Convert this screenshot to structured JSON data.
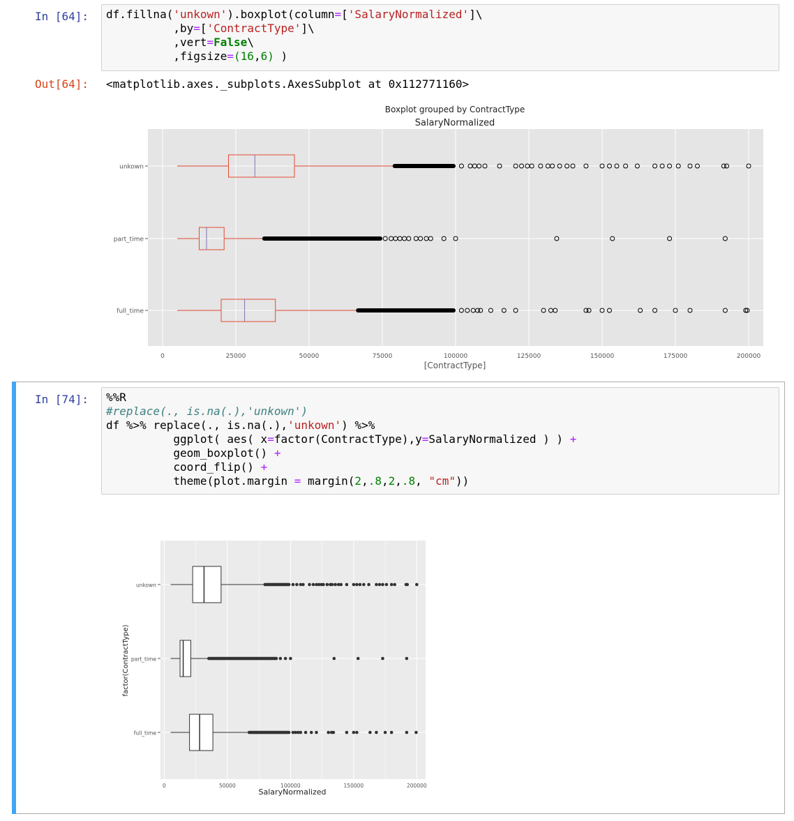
{
  "cell64": {
    "in_prompt": "In [64]:",
    "code_lines": [
      [
        [
          "df.fillna(",
          ""
        ],
        [
          "'unkown'",
          "s"
        ],
        [
          ").boxplot(column",
          ""
        ],
        [
          "=",
          "op"
        ],
        [
          "[",
          ""
        ],
        [
          "'SalaryNormalized'",
          "s"
        ],
        [
          "]\\",
          ""
        ]
      ],
      [
        [
          "          ,by",
          ""
        ],
        [
          "=",
          "op"
        ],
        [
          "[",
          ""
        ],
        [
          "'ContractType'",
          "s"
        ],
        [
          "]\\",
          ""
        ]
      ],
      [
        [
          "          ,vert",
          ""
        ],
        [
          "=",
          "op"
        ],
        [
          "False",
          "kw"
        ],
        [
          "\\",
          ""
        ]
      ],
      [
        [
          "          ,figsize",
          ""
        ],
        [
          "=",
          "op"
        ],
        [
          "(",
          "num"
        ],
        [
          "16",
          "num"
        ],
        [
          ",",
          ""
        ],
        [
          "6",
          "num"
        ],
        [
          ")",
          "num"
        ],
        [
          " )",
          ""
        ]
      ]
    ],
    "out_prompt": "Out[64]:",
    "out_text": "<matplotlib.axes._subplots.AxesSubplot at 0x112771160>"
  },
  "cell74": {
    "in_prompt": "In [74]:",
    "code_lines": [
      [
        [
          "%%R",
          ""
        ]
      ],
      [
        [
          "#replace(., is.na(.),'unkown')",
          "com"
        ]
      ],
      [
        [
          "df ",
          ""
        ],
        [
          "%>%",
          ""
        ],
        [
          " replace(., is.na(.),",
          ""
        ],
        [
          "'unkown'",
          "s"
        ],
        [
          ") ",
          ""
        ],
        [
          "%>%",
          ""
        ]
      ],
      [
        [
          "          ggplot( aes( x",
          ""
        ],
        [
          "=",
          "op"
        ],
        [
          "factor(ContractType),y",
          ""
        ],
        [
          "=",
          "op"
        ],
        [
          "SalaryNormalized ) ) ",
          ""
        ],
        [
          "+",
          "op"
        ]
      ],
      [
        [
          "          geom_boxplot() ",
          ""
        ],
        [
          "+",
          "op"
        ]
      ],
      [
        [
          "          coord_flip() ",
          ""
        ],
        [
          "+",
          "op"
        ]
      ],
      [
        [
          "          theme(plot.margin ",
          ""
        ],
        [
          "=",
          "op"
        ],
        [
          " margin(",
          ""
        ],
        [
          "2",
          "num"
        ],
        [
          ",",
          ""
        ],
        [
          ".8",
          "num"
        ],
        [
          ",",
          ""
        ],
        [
          "2",
          "num"
        ],
        [
          ",",
          ""
        ],
        [
          ".8",
          "num"
        ],
        [
          ", ",
          ""
        ],
        [
          "\"cm\"",
          "s"
        ],
        [
          "))",
          ""
        ]
      ]
    ]
  },
  "chart_data": [
    {
      "type": "box",
      "suptitle": "Boxplot grouped by ContractType",
      "title": "SalaryNormalized",
      "xlabel": "[ContractType]",
      "orientation": "horizontal",
      "xlim": [
        -5000,
        205000
      ],
      "xticks": [
        0,
        25000,
        50000,
        75000,
        100000,
        125000,
        150000,
        175000,
        200000
      ],
      "categories": [
        "full_time",
        "part_time",
        "unkown"
      ],
      "boxes": [
        {
          "name": "full_time",
          "whislo": 5000,
          "q1": 20000,
          "median": 28000,
          "q3": 38500,
          "whishi": 66000,
          "dense_outliers": [
            66000,
            100000
          ],
          "outliers": [
            102000,
            104000,
            106000,
            107500,
            108500,
            112000,
            116500,
            120500,
            130000,
            132500,
            134000,
            144500,
            145500,
            150000,
            152500,
            163000,
            168000,
            175000,
            180000,
            192000,
            199000,
            199500
          ]
        },
        {
          "name": "part_time",
          "whislo": 5000,
          "q1": 12500,
          "median": 15000,
          "q3": 21000,
          "whishi": 34000,
          "dense_outliers": [
            34000,
            75000
          ],
          "outliers": [
            76000,
            78000,
            79500,
            81000,
            82500,
            84000,
            86500,
            88000,
            90000,
            91500,
            96000,
            100000,
            134500,
            153500,
            173000,
            192000
          ]
        },
        {
          "name": "unkown",
          "whislo": 5000,
          "q1": 22500,
          "median": 31500,
          "q3": 45000,
          "whishi": 78500,
          "dense_outliers": [
            78500,
            100000
          ],
          "outliers": [
            102000,
            105000,
            106500,
            108000,
            110000,
            115000,
            120500,
            122500,
            124500,
            126000,
            129000,
            131500,
            133000,
            135500,
            138000,
            140000,
            144500,
            150000,
            152500,
            155000,
            158000,
            162000,
            168000,
            170500,
            173000,
            176000,
            180000,
            182500,
            191500,
            192500,
            200000
          ]
        }
      ],
      "colors": {
        "box": "#e24a33",
        "median": "#8172b2",
        "panel": "#e5e5e5",
        "grid": "#ffffff"
      }
    },
    {
      "type": "box",
      "xlabel": "SalaryNormalized",
      "ylabel": "factor(ContractType)",
      "orientation": "horizontal",
      "xlim": [
        -3000,
        207000
      ],
      "xticks": [
        0,
        50000,
        100000,
        150000,
        200000
      ],
      "categories": [
        "full_time",
        "part_time",
        "unkown"
      ],
      "boxes": [
        {
          "name": "full_time",
          "whislo": 5000,
          "q1": 20000,
          "median": 28000,
          "q3": 38500,
          "whishi": 66000,
          "dense_outliers": [
            66000,
            100000
          ],
          "outliers": [
            102000,
            104000,
            106000,
            108000,
            112000,
            116500,
            120500,
            130000,
            132500,
            134000,
            144500,
            150000,
            152500,
            163000,
            168000,
            175000,
            180000,
            192000,
            199500
          ]
        },
        {
          "name": "part_time",
          "whislo": 5000,
          "q1": 12500,
          "median": 15000,
          "q3": 21000,
          "whishi": 34000,
          "dense_outliers": [
            34000,
            90000
          ],
          "outliers": [
            92000,
            96000,
            100000,
            134500,
            153500,
            173000,
            192000
          ]
        },
        {
          "name": "unkown",
          "whislo": 5000,
          "q1": 22500,
          "median": 31500,
          "q3": 45000,
          "whishi": 78500,
          "dense_outliers": [
            78500,
            100000
          ],
          "outliers": [
            102000,
            105000,
            108000,
            110000,
            115000,
            118000,
            120500,
            122500,
            124500,
            126000,
            129000,
            131500,
            133000,
            135500,
            138000,
            140000,
            144500,
            150000,
            152500,
            155000,
            158000,
            162000,
            168000,
            170500,
            173000,
            176000,
            180000,
            182500,
            191500,
            192500,
            200000
          ]
        }
      ],
      "colors": {
        "box": "#333333",
        "fill": "#ffffff",
        "point": "#333333",
        "panel": "#ebebeb",
        "grid": "#ffffff"
      }
    }
  ]
}
